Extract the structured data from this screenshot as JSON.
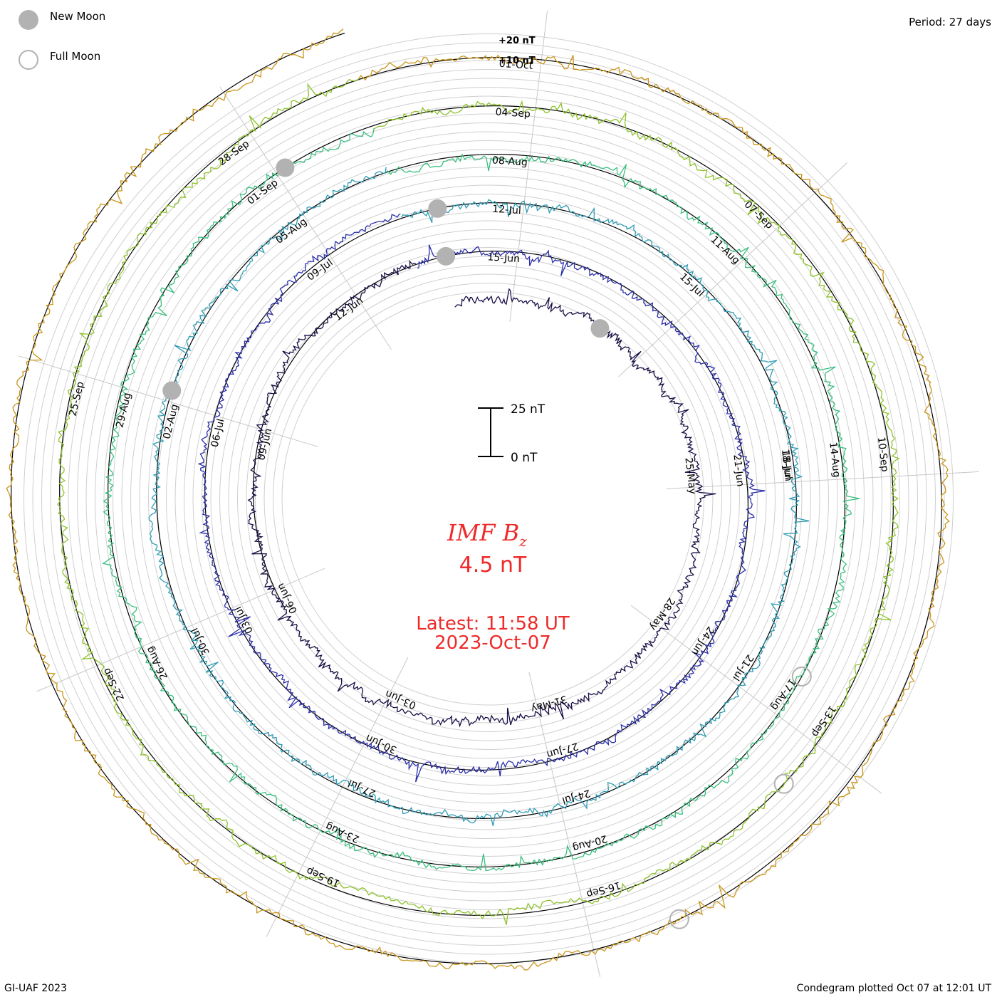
{
  "legend": {
    "new_moon": "New Moon",
    "full_moon": "Full Moon"
  },
  "period_label": "Period: 27 days",
  "credit": "GI-UAF 2023",
  "plotted": "Condegram plotted Oct 07 at 12:01 UT",
  "center": {
    "title": "IMF B",
    "subscript": "z",
    "value": "4.5 nT",
    "latest": "Latest: 11:58 UT",
    "date": "2023-Oct-07"
  },
  "scale_bar": {
    "top_label": "25 nT",
    "bottom_label": "0 nT"
  },
  "ring_labels": [
    "+20 nT",
    "+10 nT"
  ],
  "chart_data": {
    "type": "line",
    "title": "IMF B",
    "ylabel": "nT",
    "period_days": 27,
    "grid": true,
    "colors": [
      "#1a0d45",
      "#2b2fa8",
      "#2f9cb5",
      "#39bf7e",
      "#8ec22c",
      "#c9951a",
      "#c81818"
    ],
    "revolutions": [
      {
        "color": "#1a0d45",
        "dates": [
          "25-May",
          "28-May",
          "31-May",
          "03-Jun",
          "06-Jun",
          "09-Jun",
          "12-Jun",
          "15-Jun"
        ]
      },
      {
        "color": "#2b2fa8",
        "dates": [
          "21-Jun",
          "24-Jun",
          "27-Jun",
          "30-Jun",
          "03-Jul",
          "06-Jul",
          "09-Jul",
          "12-Jul",
          "15-Jul",
          "18-Jun"
        ]
      },
      {
        "color": "#2f9cb5",
        "dates": [
          "18-Jul",
          "21-Jul",
          "24-Jul",
          "27-Jul",
          "30-Jul",
          "02-Aug",
          "05-Aug",
          "08-Aug",
          "11-Aug"
        ]
      },
      {
        "color": "#39bf7e",
        "dates": [
          "14-Aug",
          "17-Aug",
          "20-Aug",
          "23-Aug",
          "26-Aug",
          "29-Aug",
          "01-Sep",
          "04-Sep",
          "07-Sep"
        ]
      },
      {
        "color": "#c9951a",
        "dates": [
          "10-Sep",
          "13-Sep",
          "16-Sep",
          "19-Sep",
          "22-Sep",
          "25-Sep",
          "28-Sep",
          "01-Oct"
        ]
      }
    ]
  }
}
